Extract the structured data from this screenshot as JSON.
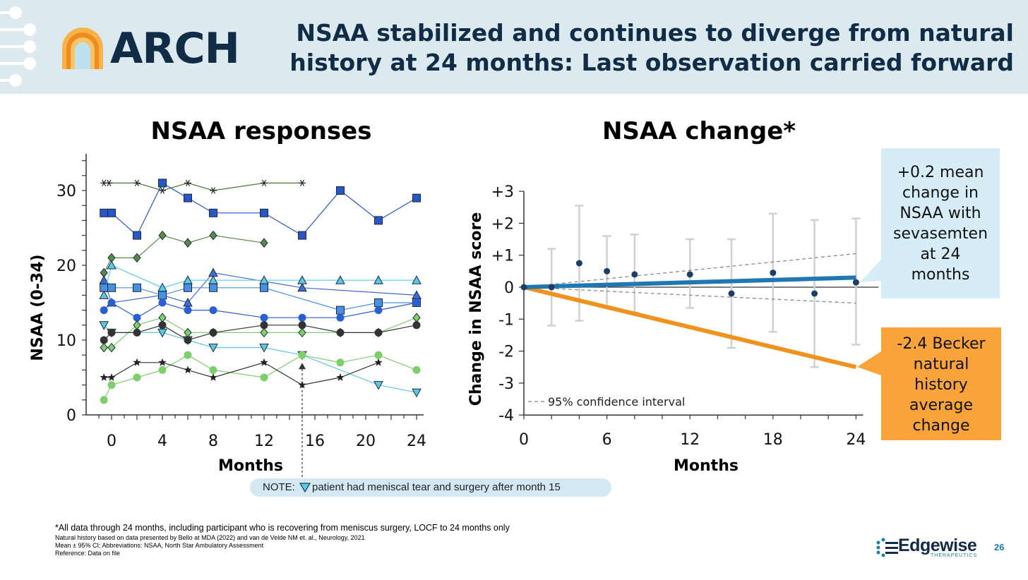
{
  "header": {
    "logo_text": "ARCH",
    "title_line1": "NSAA stabilized and continues to diverge from natural",
    "title_line2": "history at 24 months: Last observation carried forward"
  },
  "colors": {
    "header_bg": "#dce9ee",
    "navy": "#102c47",
    "blue_line": "#1f77b4",
    "orange_line": "#f0921e",
    "callout_blue": "#d6ecf7",
    "callout_orange": "#f8a43b"
  },
  "chart_data": [
    {
      "type": "line",
      "title": "NSAA responses",
      "xlabel": "Months",
      "ylabel": "NSAA (0-34)",
      "xlim": [
        -1,
        24
      ],
      "ylim": [
        0,
        34
      ],
      "xticks": [
        "0",
        "4",
        "8",
        "12",
        "16",
        "20",
        "24"
      ],
      "yticks": [
        "0",
        "10",
        "20",
        "30"
      ],
      "series": [
        {
          "marker": "asterisk",
          "color": "#4a7a3a",
          "points": [
            [
              -0.6,
              31
            ],
            [
              -0.2,
              31
            ],
            [
              2,
              31
            ],
            [
              4,
              30
            ],
            [
              6,
              31
            ],
            [
              8,
              30
            ],
            [
              12,
              31
            ],
            [
              15,
              31
            ]
          ]
        },
        {
          "marker": "square",
          "color": "#2855c8",
          "points": [
            [
              -0.6,
              27
            ],
            [
              0,
              27
            ],
            [
              2,
              24
            ],
            [
              4,
              31
            ],
            [
              6,
              29
            ],
            [
              8,
              27
            ],
            [
              12,
              27
            ],
            [
              15,
              24
            ],
            [
              18,
              30
            ],
            [
              21,
              26
            ],
            [
              24,
              29
            ]
          ]
        },
        {
          "marker": "diamond",
          "color": "#5a8a4a",
          "points": [
            [
              -0.6,
              19
            ],
            [
              0,
              21
            ],
            [
              2,
              21
            ],
            [
              4,
              24
            ],
            [
              6,
              23
            ],
            [
              8,
              24
            ],
            [
              12,
              23
            ]
          ]
        },
        {
          "marker": "triangle-up",
          "color": "#3e6bd6",
          "points": [
            [
              -0.6,
              18
            ],
            [
              0,
              15
            ],
            [
              4,
              16
            ],
            [
              6,
              15
            ],
            [
              8,
              19
            ],
            [
              15,
              17
            ],
            [
              24,
              16
            ]
          ]
        },
        {
          "marker": "triangle-up",
          "color": "#5bc8e8",
          "points": [
            [
              -0.6,
              16
            ],
            [
              0,
              20
            ],
            [
              4,
              17
            ],
            [
              6,
              18
            ],
            [
              8,
              18
            ],
            [
              12,
              18
            ],
            [
              15,
              18
            ],
            [
              18,
              18
            ],
            [
              21,
              18
            ],
            [
              24,
              18
            ]
          ]
        },
        {
          "marker": "square",
          "color": "#4a90e2",
          "points": [
            [
              -0.6,
              17
            ],
            [
              0,
              17
            ],
            [
              2,
              17
            ],
            [
              4,
              16
            ],
            [
              6,
              17
            ],
            [
              8,
              17
            ],
            [
              12,
              17
            ],
            [
              18,
              14
            ],
            [
              21,
              15
            ],
            [
              24,
              15
            ]
          ]
        },
        {
          "marker": "circle",
          "color": "#2a5fd4",
          "points": [
            [
              -0.6,
              14
            ],
            [
              0,
              15
            ],
            [
              2,
              13
            ],
            [
              4,
              15
            ],
            [
              6,
              14
            ],
            [
              8,
              14
            ],
            [
              12,
              13
            ],
            [
              15,
              13
            ],
            [
              18,
              13
            ],
            [
              21,
              14
            ],
            [
              24,
              15
            ]
          ]
        },
        {
          "marker": "triangle-down",
          "color": "#5bc8e8",
          "points": [
            [
              -0.6,
              12
            ],
            [
              0,
              11
            ],
            [
              4,
              11
            ],
            [
              6,
              10
            ],
            [
              8,
              9
            ],
            [
              12,
              9
            ],
            [
              15,
              8
            ],
            [
              21,
              4
            ],
            [
              24,
              3
            ]
          ]
        },
        {
          "marker": "diamond",
          "color": "#7ccf6a",
          "points": [
            [
              -0.6,
              9
            ],
            [
              0,
              9
            ],
            [
              2,
              12
            ],
            [
              4,
              13
            ],
            [
              6,
              11
            ],
            [
              8,
              11
            ],
            [
              12,
              11
            ],
            [
              15,
              11
            ],
            [
              18,
              11
            ],
            [
              21,
              11
            ],
            [
              24,
              13
            ]
          ]
        },
        {
          "marker": "circle",
          "color": "#333333",
          "points": [
            [
              -0.6,
              10
            ],
            [
              0,
              11
            ],
            [
              2,
              11
            ],
            [
              4,
              12
            ],
            [
              6,
              10
            ],
            [
              8,
              11
            ],
            [
              12,
              12
            ],
            [
              15,
              12
            ],
            [
              18,
              11
            ],
            [
              21,
              11
            ],
            [
              24,
              12
            ]
          ]
        },
        {
          "marker": "circle",
          "color": "#7ccf6a",
          "points": [
            [
              -0.6,
              2
            ],
            [
              0,
              4
            ],
            [
              2,
              5
            ],
            [
              4,
              6
            ],
            [
              6,
              8
            ],
            [
              8,
              6
            ],
            [
              12,
              5
            ],
            [
              15,
              8
            ],
            [
              18,
              7
            ],
            [
              21,
              8
            ],
            [
              24,
              6
            ]
          ]
        },
        {
          "marker": "star",
          "color": "#333333",
          "points": [
            [
              -0.6,
              5
            ],
            [
              0,
              5
            ],
            [
              2,
              7
            ],
            [
              4,
              7
            ],
            [
              6,
              6
            ],
            [
              8,
              5
            ],
            [
              12,
              7
            ],
            [
              15,
              4
            ],
            [
              18,
              5
            ],
            [
              21,
              7
            ]
          ]
        }
      ],
      "note": {
        "prefix": "NOTE:",
        "text": "patient had meniscal tear and surgery after month 15"
      }
    },
    {
      "type": "line",
      "title": "NSAA change*",
      "xlabel": "Months",
      "ylabel": "Change in NSAA score",
      "xlim": [
        0,
        24
      ],
      "ylim": [
        -4,
        3
      ],
      "xticks": [
        "0",
        "6",
        "12",
        "18",
        "24"
      ],
      "yticks": [
        "+3",
        "+2",
        "+1",
        "0",
        "-1",
        "-2",
        "-3",
        "-4"
      ],
      "mean_points": [
        {
          "x": 0,
          "y": 0,
          "lo": 0,
          "hi": 0
        },
        {
          "x": 2,
          "y": 0,
          "lo": -1.2,
          "hi": 1.2
        },
        {
          "x": 4,
          "y": 0.75,
          "lo": -1.05,
          "hi": 2.55
        },
        {
          "x": 6,
          "y": 0.5,
          "lo": -0.6,
          "hi": 1.6
        },
        {
          "x": 8,
          "y": 0.4,
          "lo": -0.8,
          "hi": 1.65
        },
        {
          "x": 12,
          "y": 0.4,
          "lo": -0.65,
          "hi": 1.5
        },
        {
          "x": 15,
          "y": -0.2,
          "lo": -1.9,
          "hi": 1.5
        },
        {
          "x": 18,
          "y": 0.45,
          "lo": -1.4,
          "hi": 2.3
        },
        {
          "x": 21,
          "y": -0.2,
          "lo": -2.5,
          "hi": 2.1
        },
        {
          "x": 24,
          "y": 0.15,
          "lo": -1.8,
          "hi": 2.15
        }
      ],
      "trend_sevasemten": {
        "x": [
          0,
          24
        ],
        "y": [
          0,
          0.3
        ]
      },
      "trend_natural_history": {
        "x": [
          0,
          24
        ],
        "y": [
          0,
          -2.5
        ]
      },
      "ci_upper": {
        "x": [
          0,
          24
        ],
        "y": [
          0,
          1.05
        ]
      },
      "ci_lower": {
        "x": [
          0,
          24
        ],
        "y": [
          0,
          -0.5
        ]
      },
      "legend": "95% confidence interval"
    }
  ],
  "callouts": {
    "blue_lines": [
      "+0.2 mean",
      "change in",
      "NSAA with",
      "sevasemten",
      "at 24",
      "months"
    ],
    "orange_lines": [
      "-2.4 Becker",
      "natural",
      "history",
      "average",
      "change"
    ]
  },
  "footnotes": {
    "line1": "*All data through 24 months, including participant who is recovering from meniscus surgery, LOCF to 24 months only",
    "line2": "Natural history based on data presented by Bello at MDA (2022) and van de Velde NM et. al., Neurology, 2021",
    "line3": "Mean ± 95% CI; Abbreviations: NSAA, North Star Ambulatory Assessment",
    "line4": "Reference: Data on file"
  },
  "footer": {
    "brand": "Edgewise",
    "brand_sub": "THERAPEUTICS",
    "page_number": "26"
  }
}
